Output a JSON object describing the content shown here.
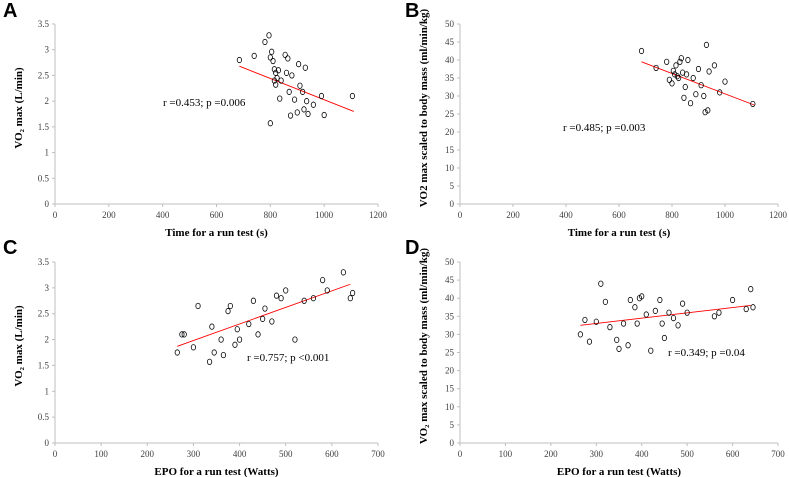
{
  "chart_data": [
    {
      "type": "scatter",
      "panel": "A",
      "xlabel": "Time for a run test (s)",
      "ylabel": "VO₂ max (L/min)",
      "xlim": [
        0,
        1200
      ],
      "ylim": [
        0,
        3.5
      ],
      "xticks": [
        "0",
        "200",
        "400",
        "600",
        "800",
        "1000",
        "1200"
      ],
      "yticks": [
        "0",
        "0.5",
        "1",
        "1.5",
        "2",
        "2.5",
        "3",
        "3.5"
      ],
      "annotation": "r =0.453; p =0.006",
      "trendline": [
        [
          685,
          2.68
        ],
        [
          1110,
          1.8
        ]
      ],
      "points": [
        [
          685,
          2.8
        ],
        [
          740,
          2.88
        ],
        [
          780,
          3.15
        ],
        [
          795,
          3.28
        ],
        [
          800,
          2.85
        ],
        [
          805,
          2.96
        ],
        [
          810,
          2.78
        ],
        [
          815,
          2.62
        ],
        [
          815,
          2.4
        ],
        [
          820,
          2.55
        ],
        [
          820,
          2.32
        ],
        [
          825,
          2.45
        ],
        [
          830,
          2.6
        ],
        [
          835,
          2.05
        ],
        [
          840,
          2.4
        ],
        [
          855,
          2.9
        ],
        [
          860,
          2.55
        ],
        [
          865,
          2.83
        ],
        [
          870,
          2.18
        ],
        [
          875,
          1.72
        ],
        [
          880,
          2.5
        ],
        [
          890,
          2.03
        ],
        [
          900,
          1.78
        ],
        [
          905,
          2.72
        ],
        [
          910,
          2.3
        ],
        [
          920,
          2.18
        ],
        [
          925,
          1.84
        ],
        [
          930,
          2.65
        ],
        [
          935,
          2.0
        ],
        [
          940,
          1.75
        ],
        [
          960,
          1.93
        ],
        [
          990,
          2.1
        ],
        [
          1000,
          1.73
        ],
        [
          1105,
          2.1
        ],
        [
          800,
          1.57
        ]
      ]
    },
    {
      "type": "scatter",
      "panel": "B",
      "xlabel": "Time for a run test (s)",
      "ylabel": "VO2 max scaled to body mass (ml/min/kg)",
      "xlim": [
        0,
        1200
      ],
      "ylim": [
        0,
        50
      ],
      "xticks": [
        "0",
        "200",
        "400",
        "600",
        "800",
        "1000",
        "1200"
      ],
      "yticks": [
        "0",
        "5",
        "10",
        "15",
        "20",
        "25",
        "30",
        "35",
        "40",
        "45",
        "50"
      ],
      "annotation": "r =0.485; p =0.003",
      "trendline": [
        [
          685,
          39.5
        ],
        [
          1110,
          27.5
        ]
      ],
      "points": [
        [
          685,
          42.5
        ],
        [
          740,
          37.8
        ],
        [
          780,
          39.5
        ],
        [
          790,
          34.5
        ],
        [
          800,
          33.5
        ],
        [
          805,
          37.0
        ],
        [
          810,
          36.0
        ],
        [
          815,
          38.5
        ],
        [
          820,
          35.5
        ],
        [
          825,
          35.0
        ],
        [
          830,
          39.5
        ],
        [
          835,
          40.5
        ],
        [
          840,
          36.5
        ],
        [
          845,
          29.5
        ],
        [
          850,
          32.5
        ],
        [
          855,
          36.0
        ],
        [
          860,
          40.0
        ],
        [
          870,
          28.0
        ],
        [
          880,
          35.0
        ],
        [
          890,
          30.5
        ],
        [
          900,
          37.5
        ],
        [
          910,
          33.0
        ],
        [
          920,
          30.0
        ],
        [
          925,
          25.5
        ],
        [
          930,
          44.2
        ],
        [
          935,
          26.0
        ],
        [
          940,
          36.8
        ],
        [
          960,
          38.5
        ],
        [
          980,
          31.0
        ],
        [
          1000,
          34.0
        ],
        [
          1105,
          27.8
        ]
      ]
    },
    {
      "type": "scatter",
      "panel": "C",
      "xlabel": "EPO for a run test (Watts)",
      "ylabel": "VO₂ max (L/min)",
      "xlim": [
        0,
        700
      ],
      "ylim": [
        0,
        3.5
      ],
      "xticks": [
        "0",
        "100",
        "200",
        "300",
        "400",
        "500",
        "600",
        "700"
      ],
      "yticks": [
        "0",
        "0.5",
        "1",
        "1.5",
        "2",
        "2.5",
        "3",
        "3.5"
      ],
      "annotation": "r =0.757; p <0.001",
      "trendline": [
        [
          265,
          1.87
        ],
        [
          640,
          3.07
        ]
      ],
      "points": [
        [
          265,
          1.75
        ],
        [
          275,
          2.1
        ],
        [
          280,
          2.1
        ],
        [
          300,
          1.85
        ],
        [
          310,
          2.65
        ],
        [
          335,
          1.57
        ],
        [
          340,
          2.25
        ],
        [
          345,
          1.75
        ],
        [
          360,
          2.0
        ],
        [
          365,
          1.7
        ],
        [
          375,
          2.55
        ],
        [
          380,
          2.65
        ],
        [
          390,
          1.9
        ],
        [
          395,
          2.2
        ],
        [
          400,
          2.0
        ],
        [
          420,
          2.3
        ],
        [
          430,
          2.75
        ],
        [
          440,
          2.1
        ],
        [
          450,
          2.4
        ],
        [
          455,
          2.6
        ],
        [
          470,
          2.35
        ],
        [
          480,
          2.85
        ],
        [
          490,
          2.8
        ],
        [
          500,
          2.95
        ],
        [
          520,
          2.0
        ],
        [
          540,
          2.75
        ],
        [
          560,
          2.8
        ],
        [
          580,
          3.15
        ],
        [
          625,
          3.3
        ],
        [
          640,
          2.8
        ],
        [
          645,
          2.9
        ],
        [
          590,
          2.95
        ]
      ]
    },
    {
      "type": "scatter",
      "panel": "D",
      "xlabel": "EPO for a run test (Watts)",
      "ylabel": "VO₂ max scaled to body mass (ml/min/kg)",
      "xlim": [
        0,
        700
      ],
      "ylim": [
        0,
        50
      ],
      "xticks": [
        "0",
        "100",
        "200",
        "300",
        "400",
        "500",
        "600",
        "700"
      ],
      "yticks": [
        "0",
        "5",
        "10",
        "15",
        "20",
        "25",
        "30",
        "35",
        "40",
        "45",
        "50"
      ],
      "annotation": "r =0.349; p =0.04",
      "trendline": [
        [
          265,
          32.5
        ],
        [
          640,
          38.0
        ]
      ],
      "points": [
        [
          265,
          30.0
        ],
        [
          275,
          34.0
        ],
        [
          285,
          28.0
        ],
        [
          300,
          33.5
        ],
        [
          310,
          44.0
        ],
        [
          320,
          39.0
        ],
        [
          330,
          32.0
        ],
        [
          345,
          28.5
        ],
        [
          350,
          26.0
        ],
        [
          360,
          33.0
        ],
        [
          370,
          27.0
        ],
        [
          375,
          39.5
        ],
        [
          385,
          37.5
        ],
        [
          390,
          33.0
        ],
        [
          395,
          40.0
        ],
        [
          400,
          40.5
        ],
        [
          410,
          35.5
        ],
        [
          420,
          25.5
        ],
        [
          430,
          36.5
        ],
        [
          440,
          39.5
        ],
        [
          445,
          33.0
        ],
        [
          450,
          29.0
        ],
        [
          460,
          36.0
        ],
        [
          470,
          34.5
        ],
        [
          480,
          32.5
        ],
        [
          490,
          38.5
        ],
        [
          500,
          36.0
        ],
        [
          560,
          35.0
        ],
        [
          570,
          36.0
        ],
        [
          600,
          39.5
        ],
        [
          630,
          37.0
        ],
        [
          640,
          42.5
        ],
        [
          645,
          37.5
        ]
      ]
    }
  ]
}
